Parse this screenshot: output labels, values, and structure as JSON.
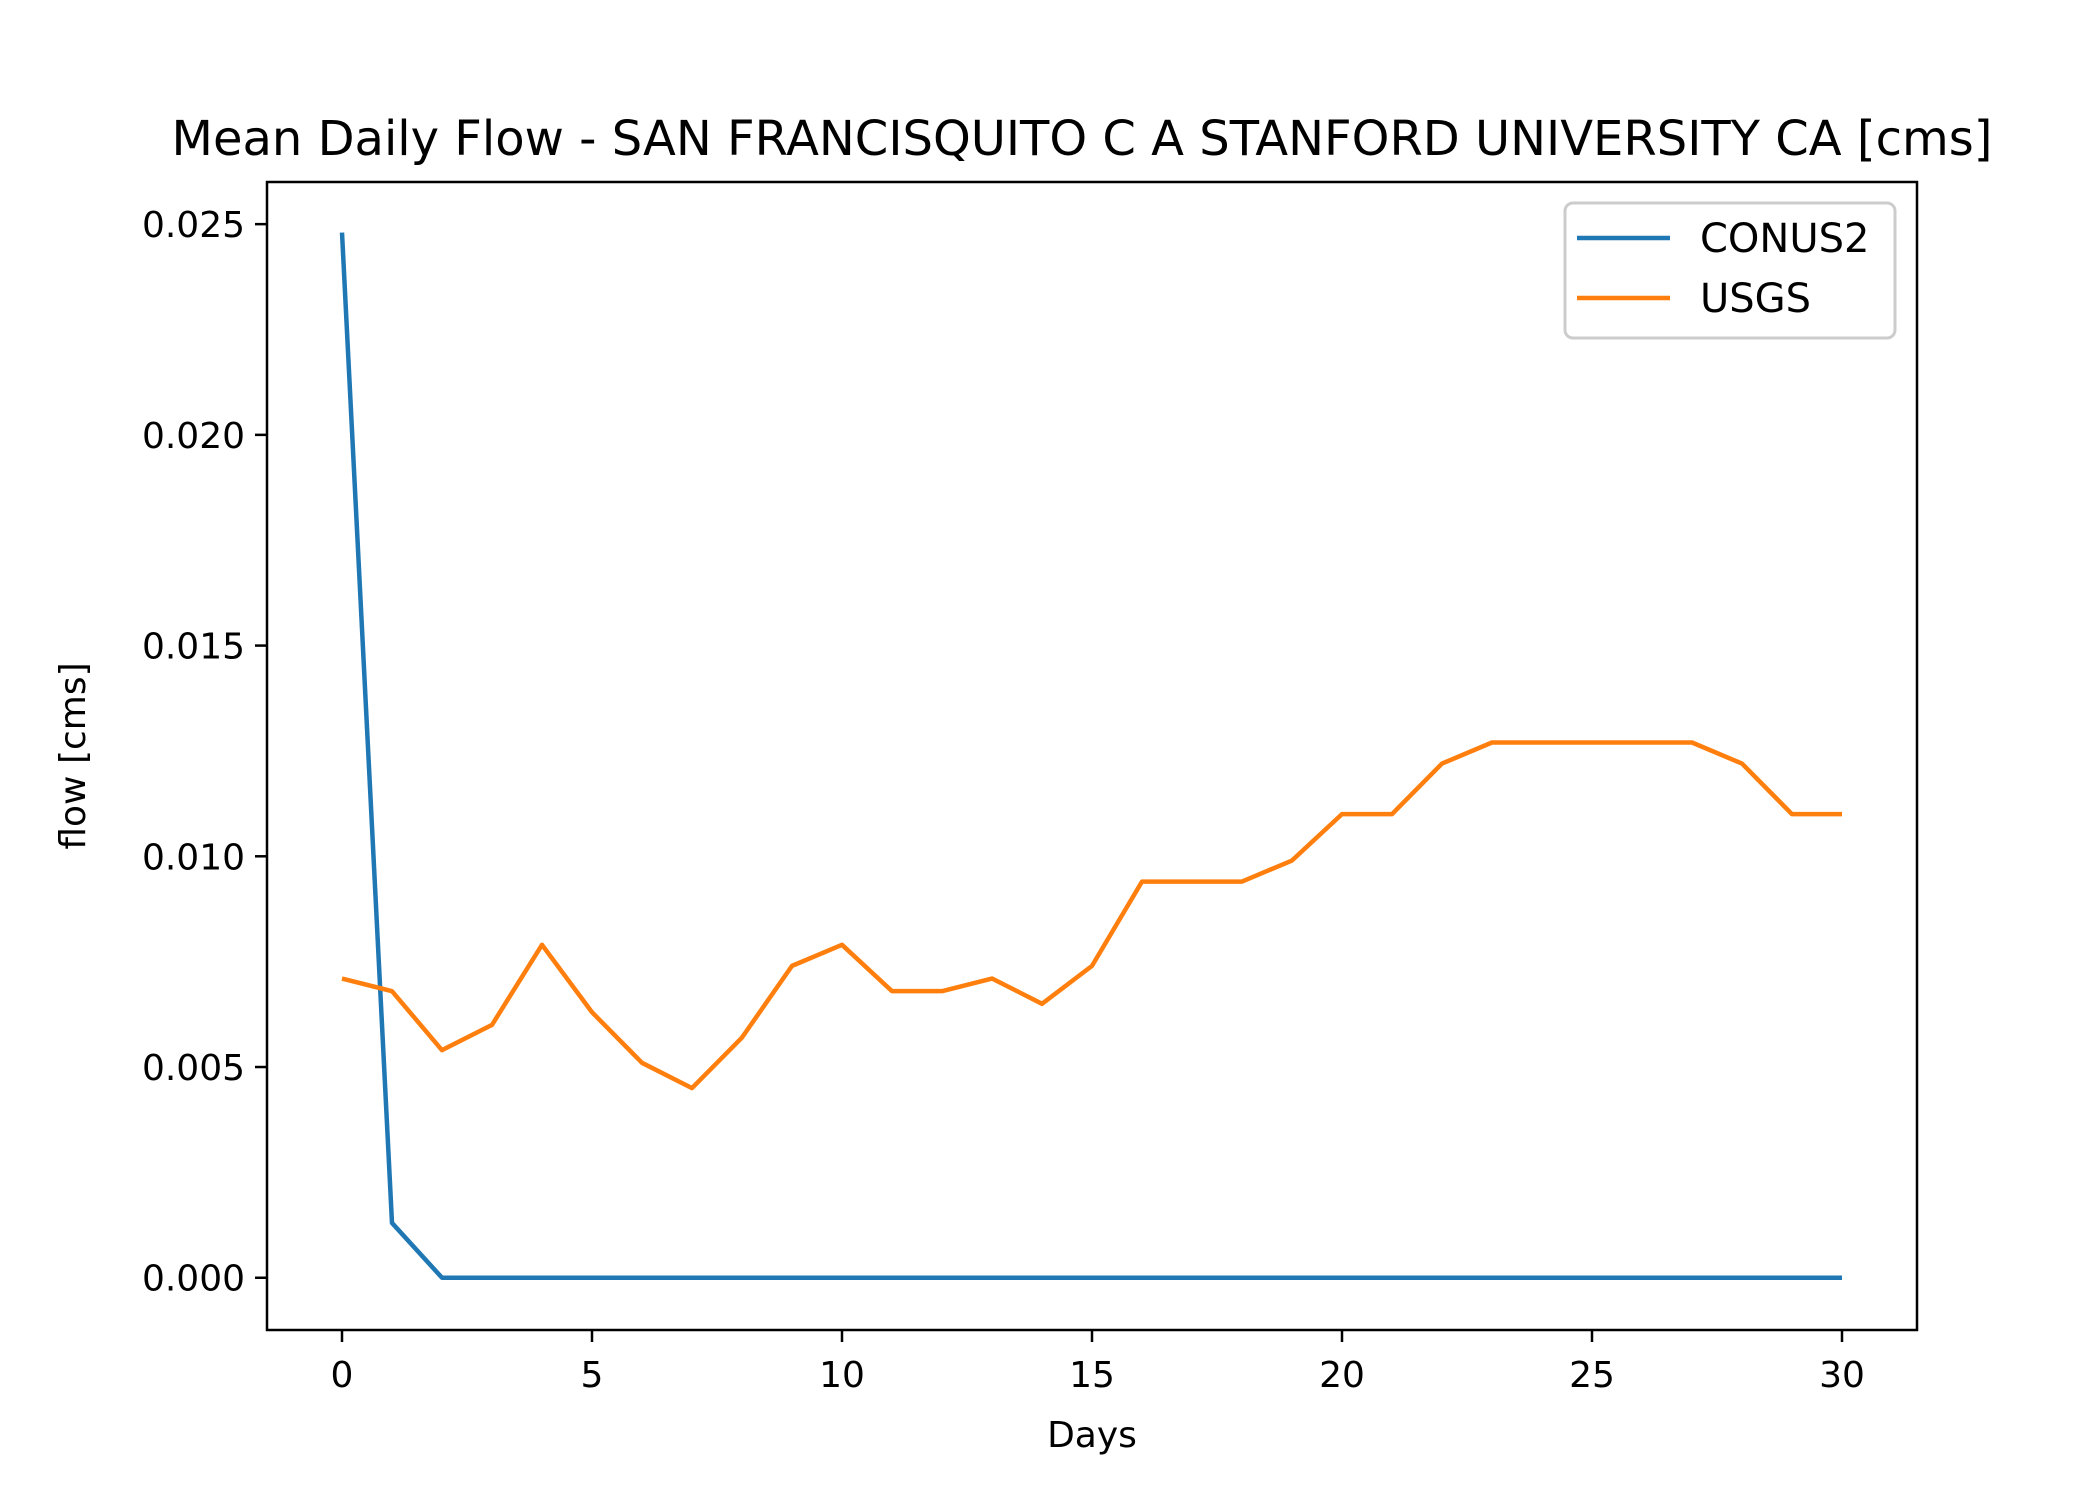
{
  "chart_data": {
    "type": "line",
    "title": "Mean Daily Flow - SAN FRANCISQUITO C A STANFORD UNIVERSITY CA [cms]",
    "xlabel": "Days",
    "ylabel": "flow [cms]",
    "xlim": [
      -1.5,
      31.5
    ],
    "ylim": [
      -0.00124,
      0.026
    ],
    "xticks": [
      0,
      5,
      10,
      15,
      20,
      25,
      30
    ],
    "xtick_labels": [
      "0",
      "5",
      "10",
      "15",
      "20",
      "25",
      "30"
    ],
    "yticks": [
      0.0,
      0.005,
      0.01,
      0.015,
      0.02,
      0.025
    ],
    "ytick_labels": [
      "0.000",
      "0.005",
      "0.010",
      "0.015",
      "0.020",
      "0.025"
    ],
    "grid": false,
    "legend_position": "top-right",
    "x": [
      0,
      1,
      2,
      3,
      4,
      5,
      6,
      7,
      8,
      9,
      10,
      11,
      12,
      13,
      14,
      15,
      16,
      17,
      18,
      19,
      20,
      21,
      22,
      23,
      24,
      25,
      26,
      27,
      28,
      29,
      30
    ],
    "series": [
      {
        "name": "CONUS2",
        "color": "#1f77b4",
        "values": [
          0.0248,
          0.0013,
          0.0,
          0.0,
          0.0,
          0.0,
          0.0,
          0.0,
          0.0,
          0.0,
          0.0,
          0.0,
          0.0,
          0.0,
          0.0,
          0.0,
          0.0,
          0.0,
          0.0,
          0.0,
          0.0,
          0.0,
          0.0,
          0.0,
          0.0,
          0.0,
          0.0,
          0.0,
          0.0,
          0.0,
          0.0
        ]
      },
      {
        "name": "USGS",
        "color": "#ff7f0e",
        "values": [
          0.0071,
          0.0068,
          0.0054,
          0.006,
          0.0079,
          0.0063,
          0.0051,
          0.0045,
          0.0057,
          0.0074,
          0.0079,
          0.0068,
          0.0068,
          0.0071,
          0.0065,
          0.0074,
          0.0094,
          0.0094,
          0.0094,
          0.0099,
          0.011,
          0.011,
          0.0122,
          0.0127,
          0.0127,
          0.0127,
          0.0127,
          0.0127,
          0.0122,
          0.011,
          0.011
        ]
      }
    ]
  }
}
